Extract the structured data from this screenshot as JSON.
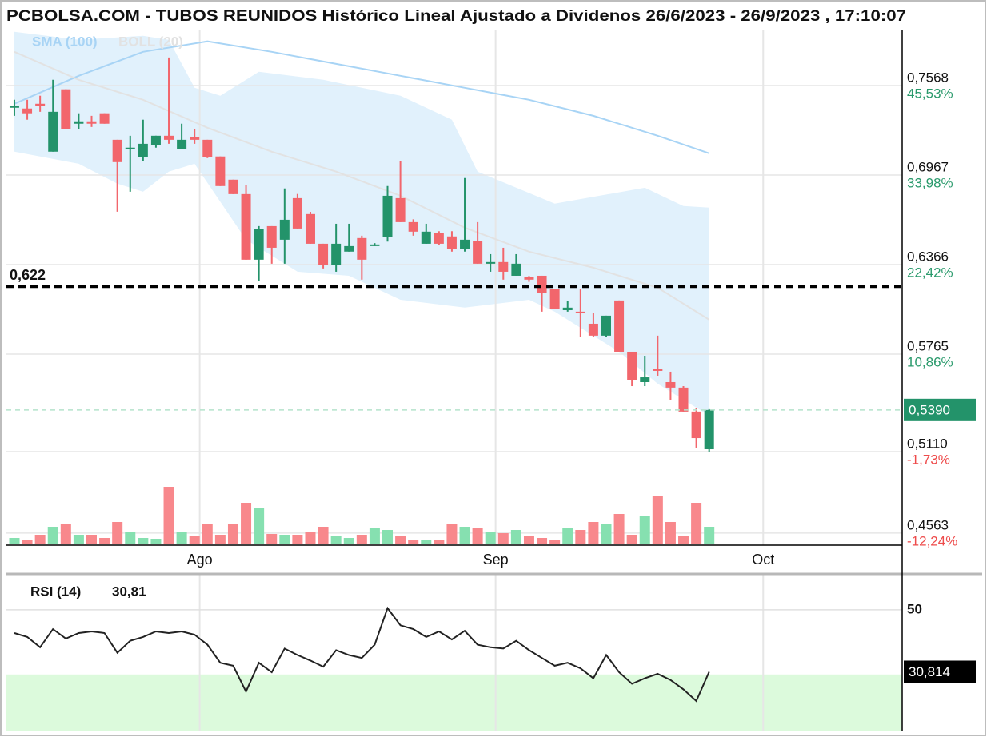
{
  "chart_data": [
    {
      "type": "candlestick",
      "title": "PCBOLSA.COM - TUBOS REUNIDOS Histórico Lineal Ajustado a Dividenos 26/6/2023 - 26/9/2023 , 17:10:07",
      "x": [
        0,
        1,
        2,
        3,
        4,
        5,
        6,
        7,
        8,
        9,
        10,
        11,
        12,
        13,
        14,
        15,
        16,
        17,
        18,
        19,
        20,
        21,
        22,
        23,
        24,
        25,
        26,
        27,
        28,
        29,
        30,
        31,
        32,
        33,
        34,
        35,
        36,
        37,
        38,
        39,
        40,
        41,
        42,
        43,
        44,
        45,
        46,
        47,
        48,
        49,
        50,
        51,
        52,
        53,
        54
      ],
      "open": [
        0.7425,
        0.7414,
        0.7446,
        0.7124,
        0.7543,
        0.7312,
        0.7328,
        0.7382,
        0.7204,
        0.714,
        0.7086,
        0.7167,
        0.7231,
        0.714,
        0.722,
        0.7204,
        0.7092,
        0.6936,
        0.6839,
        0.6399,
        0.6624,
        0.6533,
        0.6812,
        0.6705,
        0.6506,
        0.6361,
        0.6453,
        0.6544,
        0.6495,
        0.6549,
        0.6812,
        0.6651,
        0.6506,
        0.6576,
        0.6555,
        0.6469,
        0.6522,
        0.6372,
        0.6383,
        0.6291,
        0.6281,
        0.6291,
        0.62,
        0.606,
        0.605,
        0.5969,
        0.5889,
        0.6125,
        0.5781,
        0.5577,
        0.5663,
        0.5577,
        0.554,
        0.5379,
        0.5126
      ],
      "high": [
        0.7473,
        0.7473,
        0.75,
        0.7607,
        0.7543,
        0.7382,
        0.7365,
        0.7382,
        0.7204,
        0.7231,
        0.7339,
        0.7231,
        0.7757,
        0.7312,
        0.7274,
        0.7204,
        0.7092,
        0.6936,
        0.6898,
        0.6624,
        0.6624,
        0.6877,
        0.684,
        0.672,
        0.6506,
        0.664,
        0.664,
        0.656,
        0.651,
        0.6893,
        0.7059,
        0.667,
        0.664,
        0.659,
        0.659,
        0.6947,
        0.6651,
        0.6436,
        0.6479,
        0.6436,
        0.629,
        0.6291,
        0.62,
        0.612,
        0.62,
        0.6039,
        0.6023,
        0.6125,
        0.5781,
        0.5754,
        0.5889,
        0.5647,
        0.555,
        0.54,
        0.5395
      ],
      "low": [
        0.7365,
        0.7339,
        0.7392,
        0.7124,
        0.7274,
        0.7274,
        0.729,
        0.7312,
        0.6721,
        0.6855,
        0.7059,
        0.7151,
        0.7177,
        0.714,
        0.7177,
        0.7081,
        0.6893,
        0.6839,
        0.6399,
        0.6254,
        0.6372,
        0.6372,
        0.6608,
        0.6506,
        0.634,
        0.6318,
        0.6453,
        0.6265,
        0.649,
        0.652,
        0.6651,
        0.656,
        0.6506,
        0.65,
        0.6453,
        0.6453,
        0.6372,
        0.6318,
        0.6265,
        0.6291,
        0.625,
        0.605,
        0.6066,
        0.605,
        0.5878,
        0.5878,
        0.5878,
        0.5781,
        0.555,
        0.555,
        0.562,
        0.5459,
        0.5379,
        0.5137,
        0.511
      ],
      "close": [
        0.743,
        0.7382,
        0.743,
        0.7392,
        0.7274,
        0.7328,
        0.7312,
        0.7312,
        0.7054,
        0.7151,
        0.7177,
        0.7231,
        0.7204,
        0.7204,
        0.7204,
        0.7086,
        0.6893,
        0.6839,
        0.6399,
        0.6603,
        0.6479,
        0.6667,
        0.6608,
        0.6506,
        0.6361,
        0.6506,
        0.649,
        0.6399,
        0.6501,
        0.6828,
        0.6651,
        0.6587,
        0.6587,
        0.6506,
        0.6469,
        0.6533,
        0.6372,
        0.6383,
        0.6318,
        0.6372,
        0.6265,
        0.6173,
        0.6066,
        0.6077,
        0.6039,
        0.5889,
        0.6023,
        0.5781,
        0.5593,
        0.5609,
        0.5658,
        0.554,
        0.5379,
        0.5201,
        0.539
      ],
      "volume": [
        8,
        5,
        12,
        22,
        25,
        12,
        12,
        8,
        28,
        15,
        8,
        7,
        72,
        15,
        10,
        25,
        12,
        25,
        52,
        45,
        13,
        12,
        12,
        15,
        22,
        10,
        8,
        12,
        20,
        18,
        10,
        5,
        5,
        5,
        25,
        22,
        20,
        15,
        14,
        18,
        10,
        8,
        5,
        20,
        18,
        28,
        25,
        38,
        12,
        35,
        60,
        28,
        10,
        52,
        22
      ],
      "up_color": "#23936a",
      "down_color": "#f2666c",
      "up_volume_color": "#86e0b0",
      "down_volume_color": "#f8888c",
      "indicators": [
        {
          "name": "SMA (100)",
          "color": "#a8d4f5",
          "x": [
            0,
            5,
            10,
            15,
            20,
            25,
            30,
            35,
            40,
            45,
            50,
            54
          ],
          "values": [
            0.7446,
            0.7634,
            0.7795,
            0.7865,
            0.7795,
            0.7714,
            0.7634,
            0.7553,
            0.7473,
            0.7365,
            0.7231,
            0.7113
          ]
        },
        {
          "name": "BOLL (20)",
          "color": "#e2e2e2",
          "x": [
            0,
            5,
            10,
            15,
            20,
            25,
            30,
            35,
            40,
            45,
            50,
            54
          ],
          "values": [
            0.7795,
            0.7607,
            0.7473,
            0.7285,
            0.7124,
            0.699,
            0.6828,
            0.6614,
            0.6453,
            0.6345,
            0.6211,
            0.5996
          ]
        }
      ],
      "band": {
        "color": "#e1f1fc",
        "upper": {
          "x": [
            0,
            5,
            10,
            12,
            14,
            16,
            19,
            24,
            30,
            34,
            36,
            42,
            49,
            52,
            54
          ],
          "values": [
            0.7929,
            0.7876,
            0.7902,
            0.7876,
            0.7553,
            0.75,
            0.7661,
            0.7607,
            0.75,
            0.7339,
            0.699,
            0.6775,
            0.6882,
            0.6759,
            0.6748
          ]
        },
        "lower": {
          "x": [
            0,
            5,
            8,
            10,
            12,
            14,
            18,
            22,
            26,
            30,
            35,
            40,
            42,
            47,
            50,
            54
          ],
          "values": [
            0.7124,
            0.7043,
            0.6909,
            0.6855,
            0.699,
            0.7043,
            0.6533,
            0.6318,
            0.6291,
            0.613,
            0.6077,
            0.613,
            0.605,
            0.5781,
            0.5566,
            0.5352
          ]
        }
      },
      "level_line": {
        "value": 0.622,
        "label": "0,622"
      },
      "last_price": {
        "value": 0.539,
        "label": "0,5390",
        "color": "#23936a"
      },
      "xlim": [
        -0.62,
        69.0
      ],
      "xticks": [
        {
          "value": 14.4,
          "label": "Ago"
        },
        {
          "value": 37.4,
          "label": "Sep"
        },
        {
          "value": 58.2,
          "label": "Oct"
        }
      ],
      "ylim": [
        0.4482,
        0.7944
      ],
      "yticks": [
        {
          "value": 0.7568,
          "label": "0,7568"
        },
        {
          "value": 0.6967,
          "label": "0,6967"
        },
        {
          "value": 0.6366,
          "label": "0,6366"
        },
        {
          "value": 0.5765,
          "label": "0,5765"
        },
        {
          "value": 0.511,
          "label": "0,5110"
        },
        {
          "value": 0.4563,
          "label": "0,4563"
        }
      ],
      "y2lim": [
        -13.81,
        52.77
      ],
      "y2ticks": [
        {
          "value": 45.53,
          "label": "45,53%"
        },
        {
          "value": 33.98,
          "label": "33,98%"
        },
        {
          "value": 22.42,
          "label": "22,42%"
        },
        {
          "value": 10.86,
          "label": "10,86%"
        },
        {
          "value": -1.73,
          "label": "-1,73%"
        },
        {
          "value": -12.24,
          "label": "-12,24%"
        }
      ],
      "grid": true
    },
    {
      "type": "line",
      "title": "RSI (14)",
      "value_label": "30,81",
      "color": "#222222",
      "x": [
        0,
        1,
        2,
        3,
        4,
        5,
        6,
        7,
        8,
        9,
        10,
        11,
        12,
        13,
        14,
        15,
        16,
        17,
        18,
        19,
        20,
        21,
        22,
        23,
        24,
        25,
        26,
        27,
        28,
        29,
        30,
        31,
        32,
        33,
        34,
        35,
        36,
        37,
        38,
        39,
        40,
        41,
        42,
        43,
        44,
        45,
        46,
        47,
        48,
        49,
        50,
        51,
        52,
        53,
        54
      ],
      "values": [
        42.8,
        41.6,
        38.4,
        44.0,
        41.1,
        42.8,
        43.3,
        42.8,
        36.7,
        40.4,
        41.6,
        43.3,
        42.8,
        43.3,
        42.3,
        39.2,
        33.6,
        32.7,
        24.7,
        33.6,
        30.7,
        38.0,
        36.0,
        34.3,
        32.4,
        37.5,
        36.0,
        35.1,
        39.2,
        50.5,
        45.2,
        44.0,
        41.6,
        43.3,
        40.8,
        43.5,
        39.2,
        38.4,
        38.0,
        40.4,
        37.5,
        35.1,
        32.7,
        33.6,
        31.9,
        28.8,
        36.0,
        30.7,
        27.1,
        28.8,
        30.2,
        28.3,
        25.4,
        21.8,
        30.81
      ],
      "last": {
        "value": 30.814,
        "label": "30,814"
      },
      "oversold": 30,
      "zone_color": "#dcfadc",
      "xlim": [
        -0.62,
        69.0
      ],
      "ylim": [
        12.4,
        60.1
      ],
      "yticks": [
        50
      ],
      "grid": true
    }
  ]
}
